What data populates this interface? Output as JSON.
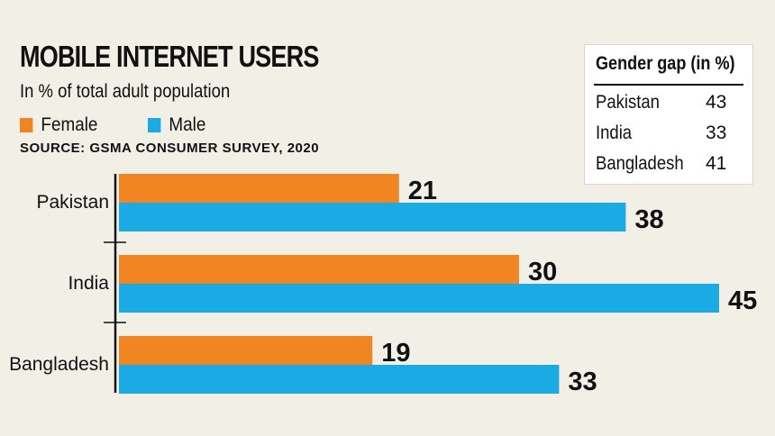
{
  "title": "MOBILE INTERNET USERS",
  "subtitle": "In % of total adult population",
  "source": "SOURCE: GSMA CONSUMER SURVEY, 2020",
  "legend": {
    "female": "Female",
    "male": "Male"
  },
  "colors": {
    "female": "#f08522",
    "male": "#1aaae4",
    "background": "#f1efe6"
  },
  "gender_gap": {
    "title": "Gender gap (in %)",
    "rows": [
      {
        "country": "Pakistan",
        "value": "43"
      },
      {
        "country": "India",
        "value": "33"
      },
      {
        "country": "Bangladesh",
        "value": "41"
      }
    ]
  },
  "chart_data": {
    "type": "bar",
    "orientation": "horizontal",
    "title": "MOBILE INTERNET USERS",
    "subtitle": "In % of total adult population",
    "categories": [
      "Pakistan",
      "India",
      "Bangladesh"
    ],
    "series": [
      {
        "name": "Female",
        "color": "#f08522",
        "values": [
          21,
          30,
          19
        ]
      },
      {
        "name": "Male",
        "color": "#1aaae4",
        "values": [
          38,
          45,
          33
        ]
      }
    ],
    "data_labels": true,
    "grid": false,
    "legend_position": "top-left"
  }
}
